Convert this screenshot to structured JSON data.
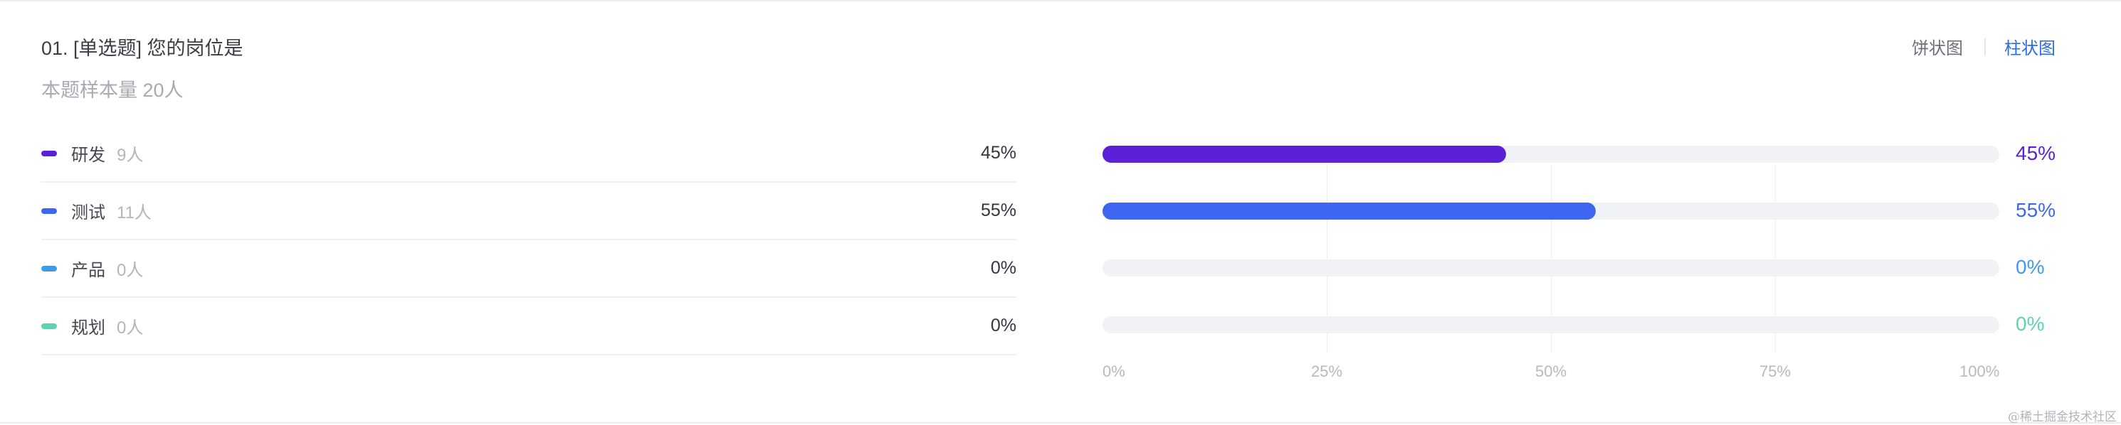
{
  "question": {
    "title": "01. [单选题] 您的岗位是",
    "sample": "本题样本量 20人"
  },
  "view_toggle": {
    "pie_label": "饼状图",
    "bar_label": "柱状图",
    "active": "bar"
  },
  "options": [
    {
      "label": "研发",
      "count": "9人",
      "percent": "45%",
      "color": "#5b21d6"
    },
    {
      "label": "测试",
      "count": "11人",
      "percent": "55%",
      "color": "#3f66f0"
    },
    {
      "label": "产品",
      "count": "0人",
      "percent": "0%",
      "color": "#3f9ae8"
    },
    {
      "label": "规划",
      "count": "0人",
      "percent": "0%",
      "color": "#5fd3ad"
    }
  ],
  "chart_data": {
    "type": "bar",
    "orientation": "horizontal",
    "categories": [
      "研发",
      "测试",
      "产品",
      "规划"
    ],
    "values": [
      45,
      55,
      0,
      0
    ],
    "value_labels": [
      "45%",
      "55%",
      "0%",
      "0%"
    ],
    "colors": [
      "#5b21d6",
      "#3f66f0",
      "#3f9ae8",
      "#5fd3ad"
    ],
    "xlim": [
      0,
      100
    ],
    "x_ticks": [
      "0%",
      "25%",
      "50%",
      "75%",
      "100%"
    ],
    "grid": true
  },
  "watermark": "@稀土掘金技术社区"
}
